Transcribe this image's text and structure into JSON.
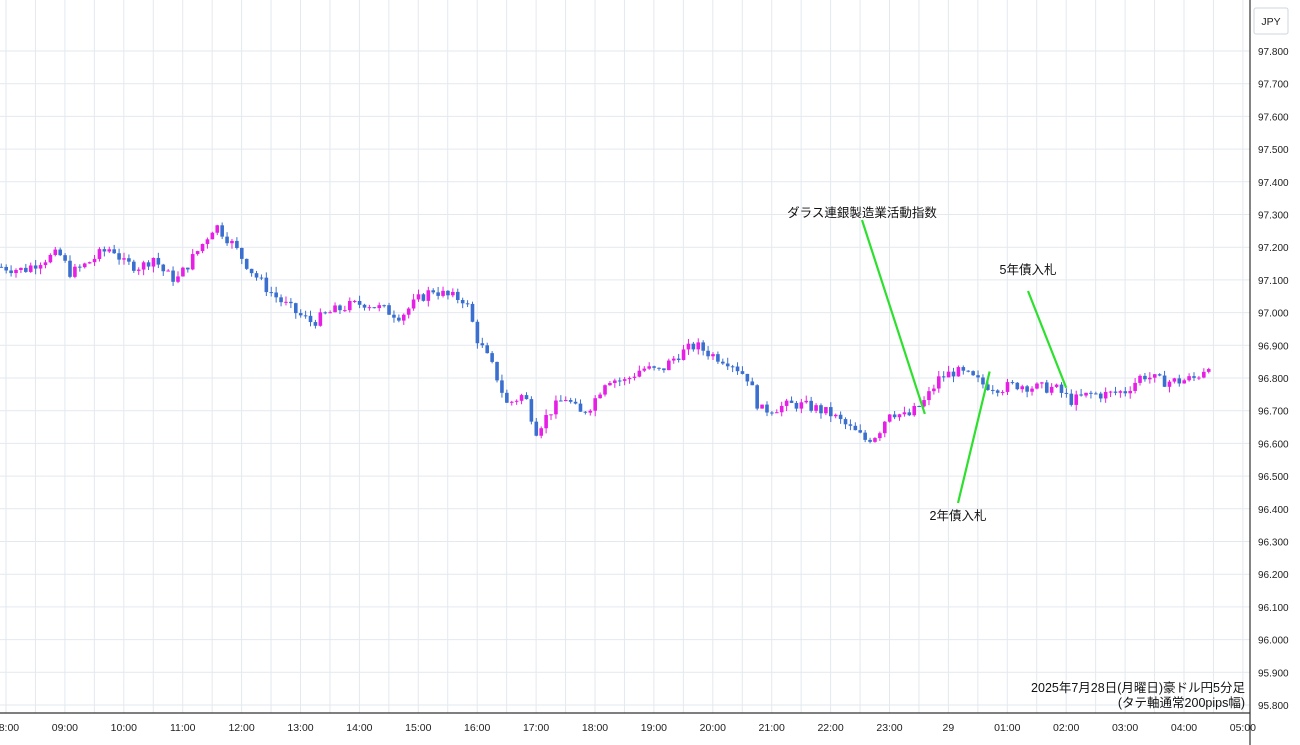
{
  "chart_data": {
    "type": "candlestick",
    "currency_label": "JPY",
    "caption_line1": "2025年7月28日(月曜日)豪ドル円5分足",
    "caption_line2": "(タテ軸通常200pips幅)",
    "y_ticks": [
      "97.800",
      "97.700",
      "97.600",
      "97.500",
      "97.400",
      "97.300",
      "97.200",
      "97.100",
      "97.000",
      "96.900",
      "96.800",
      "96.700",
      "96.600",
      "96.500",
      "96.400",
      "96.300",
      "96.200",
      "96.100",
      "96.000",
      "95.900",
      "95.800"
    ],
    "ylim": [
      95.8,
      97.8
    ],
    "x_labels": [
      "08:00",
      "09:00",
      "10:00",
      "11:00",
      "12:00",
      "13:00",
      "14:00",
      "15:00",
      "16:00",
      "17:00",
      "18:00",
      "19:00",
      "20:00",
      "21:00",
      "22:00",
      "23:00",
      "29",
      "01:00",
      "02:00",
      "03:00",
      "04:00",
      "05:00"
    ],
    "x_start_hour": 8,
    "up_color": "#e61ee6",
    "down_color": "#3a6fd0",
    "annotation_color": "#2ee02e",
    "close_path": [
      [
        7.92,
        97.14
      ],
      [
        8.3,
        97.13
      ],
      [
        8.6,
        97.16
      ],
      [
        8.9,
        97.18
      ],
      [
        9.1,
        97.12
      ],
      [
        9.3,
        97.14
      ],
      [
        9.6,
        97.18
      ],
      [
        9.8,
        97.2
      ],
      [
        10.0,
        97.15
      ],
      [
        10.3,
        97.14
      ],
      [
        10.5,
        97.17
      ],
      [
        10.7,
        97.12
      ],
      [
        10.9,
        97.1
      ],
      [
        11.1,
        97.15
      ],
      [
        11.3,
        97.2
      ],
      [
        11.55,
        97.27
      ],
      [
        11.8,
        97.22
      ],
      [
        12.0,
        97.17
      ],
      [
        12.2,
        97.12
      ],
      [
        12.45,
        97.07
      ],
      [
        12.7,
        97.03
      ],
      [
        13.0,
        96.99
      ],
      [
        13.2,
        96.97
      ],
      [
        13.5,
        97.0
      ],
      [
        13.8,
        97.02
      ],
      [
        14.1,
        97.03
      ],
      [
        14.4,
        97.01
      ],
      [
        14.7,
        96.99
      ],
      [
        15.0,
        97.04
      ],
      [
        15.25,
        97.07
      ],
      [
        15.5,
        97.05
      ],
      [
        15.8,
        97.04
      ],
      [
        16.0,
        96.92
      ],
      [
        16.3,
        96.82
      ],
      [
        16.5,
        96.72
      ],
      [
        16.8,
        96.75
      ],
      [
        17.0,
        96.64
      ],
      [
        17.25,
        96.7
      ],
      [
        17.5,
        96.74
      ],
      [
        17.75,
        96.69
      ],
      [
        17.95,
        96.72
      ],
      [
        18.2,
        96.8
      ],
      [
        18.5,
        96.79
      ],
      [
        18.8,
        96.83
      ],
      [
        19.1,
        96.82
      ],
      [
        19.4,
        96.87
      ],
      [
        19.7,
        96.9
      ],
      [
        20.0,
        96.87
      ],
      [
        20.3,
        96.85
      ],
      [
        20.6,
        96.8
      ],
      [
        20.8,
        96.7
      ],
      [
        21.1,
        96.71
      ],
      [
        21.4,
        96.72
      ],
      [
        21.7,
        96.71
      ],
      [
        22.0,
        96.69
      ],
      [
        22.3,
        96.65
      ],
      [
        22.6,
        96.61
      ],
      [
        22.8,
        96.63
      ],
      [
        23.0,
        96.7
      ],
      [
        23.3,
        96.68
      ],
      [
        23.6,
        96.73
      ],
      [
        23.85,
        96.8
      ],
      [
        24.1,
        96.82
      ],
      [
        24.3,
        96.81
      ],
      [
        24.6,
        96.78
      ],
      [
        24.9,
        96.77
      ],
      [
        25.2,
        96.78
      ],
      [
        25.5,
        96.77
      ],
      [
        25.8,
        96.77
      ],
      [
        26.1,
        96.73
      ],
      [
        26.4,
        96.75
      ],
      [
        26.7,
        96.75
      ],
      [
        27.0,
        96.76
      ],
      [
        27.3,
        96.81
      ],
      [
        27.6,
        96.79
      ],
      [
        27.9,
        96.79
      ],
      [
        28.2,
        96.8
      ],
      [
        28.5,
        96.86
      ]
    ],
    "annotations": [
      {
        "text": "ダラス連銀製造業活動指数",
        "time": 23.6,
        "price": 96.69
      },
      {
        "text": "5年債入札",
        "time": 26.0,
        "price": 96.77
      },
      {
        "text": "2年債入札",
        "time": 24.7,
        "price": 96.82
      }
    ]
  }
}
